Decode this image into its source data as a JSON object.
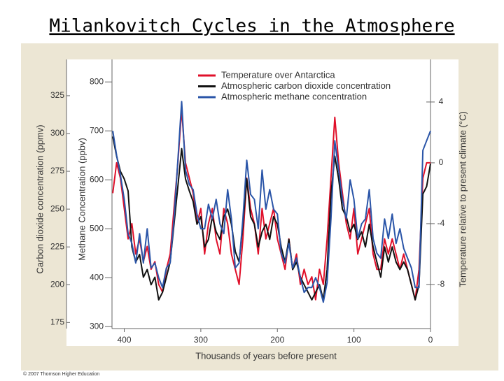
{
  "chart_data": {
    "type": "line",
    "title": "Milankovitch Cycles in the Atmosphere",
    "xlabel": "Thousands of years before present",
    "ylabel": "Carbon dioxide concentration (ppmv)",
    "y3label": "Methane Concentration (ppbv)",
    "y2label": "Temperature relative to present climate (°C)",
    "credit": "© 2007 Thomson Higher Education",
    "legend": "top",
    "grid": false,
    "xlim": [
      416,
      0
    ],
    "xticks": [
      400,
      300,
      200,
      100,
      0
    ],
    "ylim": [
      171,
      349
    ],
    "yticks": [
      175,
      200,
      225,
      250,
      275,
      300,
      325
    ],
    "y3lim": [
      296,
      846
    ],
    "y3ticks": [
      300,
      400,
      500,
      600,
      700,
      800
    ],
    "y2lim": [
      -10.9,
      6.8
    ],
    "y2ticks": [
      4,
      0,
      -4,
      -8
    ],
    "x": [
      415,
      410,
      405,
      400,
      395,
      390,
      385,
      380,
      375,
      370,
      365,
      360,
      355,
      350,
      345,
      340,
      335,
      330,
      325,
      320,
      315,
      310,
      305,
      300,
      295,
      290,
      285,
      280,
      275,
      270,
      265,
      260,
      255,
      250,
      245,
      240,
      235,
      230,
      225,
      220,
      215,
      210,
      205,
      200,
      195,
      190,
      185,
      180,
      175,
      170,
      165,
      160,
      155,
      150,
      145,
      140,
      135,
      130,
      125,
      120,
      115,
      110,
      105,
      100,
      95,
      90,
      85,
      80,
      75,
      70,
      65,
      60,
      55,
      50,
      45,
      40,
      35,
      30,
      25,
      20,
      15,
      10,
      5,
      0
    ],
    "series": [
      {
        "name": "Temperature over Antarctica",
        "color": "#e0102a",
        "axis": "y2",
        "values": [
          -2,
          0,
          -1,
          -3,
          -5,
          -4,
          -6,
          -5,
          -6.5,
          -5.5,
          -7,
          -6.5,
          -8,
          -8.5,
          -7,
          -6,
          -3,
          0,
          3.5,
          0,
          -1,
          -2,
          -4,
          -3,
          -6,
          -4,
          -3,
          -5,
          -6,
          -3,
          -4,
          -6,
          -7,
          -8,
          -5,
          -1,
          -3,
          -4,
          -6,
          -3,
          -5,
          -4,
          -3,
          -5,
          -6,
          -7,
          -5,
          -7,
          -6,
          -8,
          -7,
          -8,
          -7.5,
          -9,
          -7,
          -8,
          -5,
          -1,
          3,
          0,
          -2,
          -4,
          -5,
          -3,
          -6,
          -5,
          -4,
          -3,
          -6,
          -7,
          -7,
          -5,
          -6,
          -5,
          -6,
          -7,
          -6,
          -7,
          -8,
          -9,
          -7,
          -1,
          0,
          0
        ]
      },
      {
        "name": "Atmospheric carbon dioxide concentration",
        "color": "#111111",
        "axis": "y",
        "values": [
          298,
          285,
          275,
          270,
          262,
          225,
          215,
          220,
          205,
          210,
          200,
          205,
          190,
          195,
          205,
          215,
          240,
          265,
          290,
          270,
          262,
          255,
          240,
          245,
          225,
          230,
          245,
          235,
          230,
          245,
          250,
          240,
          222,
          215,
          240,
          270,
          245,
          240,
          225,
          235,
          240,
          230,
          245,
          240,
          225,
          215,
          230,
          210,
          215,
          205,
          200,
          195,
          190,
          195,
          200,
          190,
          210,
          260,
          285,
          270,
          250,
          245,
          235,
          240,
          230,
          235,
          225,
          240,
          225,
          215,
          205,
          225,
          215,
          225,
          215,
          210,
          215,
          210,
          200,
          190,
          200,
          260,
          265,
          280
        ]
      },
      {
        "name": "Atmospheric methane concentration",
        "color": "#2a55a8",
        "axis": "y3",
        "values": [
          700,
          650,
          610,
          560,
          490,
          470,
          430,
          490,
          430,
          500,
          420,
          430,
          400,
          380,
          420,
          430,
          520,
          640,
          760,
          620,
          590,
          580,
          530,
          500,
          500,
          550,
          520,
          560,
          510,
          490,
          580,
          520,
          420,
          430,
          520,
          640,
          570,
          560,
          500,
          620,
          540,
          580,
          540,
          530,
          450,
          430,
          470,
          420,
          440,
          400,
          370,
          380,
          380,
          400,
          380,
          350,
          390,
          520,
          680,
          620,
          560,
          520,
          600,
          560,
          480,
          510,
          520,
          580,
          480,
          450,
          440,
          520,
          480,
          530,
          470,
          500,
          460,
          440,
          420,
          380,
          380,
          660,
          680,
          700
        ]
      }
    ]
  }
}
